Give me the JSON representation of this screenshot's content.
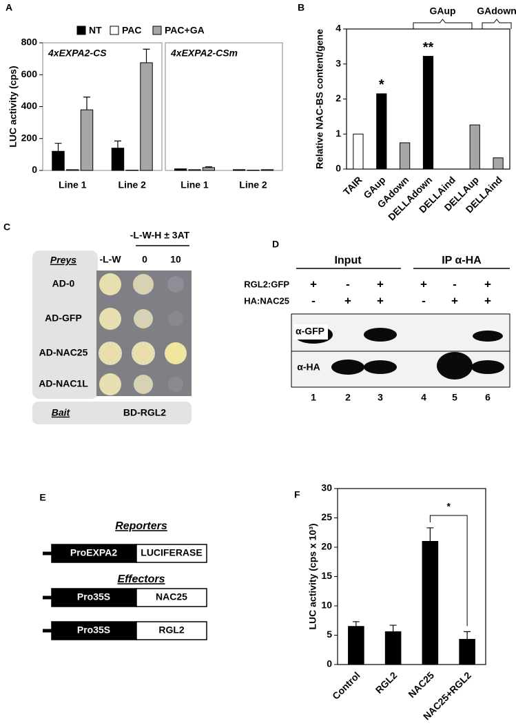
{
  "chart_data": [
    {
      "type": "bar",
      "panel": "A",
      "title": "4xEXPA2-CS",
      "y_label": "LUC activity (cps)",
      "categories": [
        "Line 1",
        "Line 2"
      ],
      "series": [
        {
          "name": "NT",
          "color": "#000000",
          "values": [
            120,
            140
          ],
          "errors": [
            50,
            45
          ]
        },
        {
          "name": "PAC",
          "color": "#ffffff",
          "values": [
            5,
            2
          ],
          "errors": [
            0,
            0
          ]
        },
        {
          "name": "PAC+GA",
          "color": "#a6a6a6",
          "values": [
            380,
            675
          ],
          "errors": [
            80,
            85
          ]
        }
      ],
      "ylim": [
        0,
        800
      ],
      "yticks": [
        0,
        200,
        400,
        600,
        800
      ]
    },
    {
      "type": "bar",
      "title": "4xEXPA2-CSm",
      "categories": [
        "Line 1",
        "Line 2"
      ],
      "series": [
        {
          "color": "#000000",
          "values": [
            10,
            5
          ],
          "errors": [
            0,
            0
          ]
        },
        {
          "color": "#ffffff",
          "values": [
            5,
            2
          ],
          "errors": [
            0,
            0
          ]
        },
        {
          "color": "#a6a6a6",
          "values": [
            18,
            5
          ],
          "errors": [
            5,
            0
          ]
        }
      ],
      "ylim": [
        0,
        800
      ]
    },
    {
      "type": "bar",
      "panel": "B",
      "y_label": "Relative NAC-BS content/gene",
      "categories": [
        "TAIR",
        "GAup",
        "GAdown",
        "DELLAdown",
        "DELLAind",
        "DELLAup",
        "DELLAind"
      ],
      "values": [
        1,
        2.15,
        0.75,
        3.22,
        0,
        1.26,
        0.32
      ],
      "colors": [
        "#ffffff",
        "#000000",
        "#a6a6a6",
        "#000000",
        "#a6a6a6",
        "#a6a6a6",
        "#a6a6a6"
      ],
      "annotations": [
        "*",
        "**"
      ],
      "group_labels": [
        "GAup",
        "GAdown"
      ],
      "ylim": [
        0,
        4
      ],
      "yticks": [
        0,
        1,
        2,
        3,
        4
      ]
    },
    {
      "type": "bar",
      "panel": "F",
      "y_label": "LUC activity (cps x 10³)",
      "categories": [
        "Control",
        "RGL2",
        "NAC25",
        "NAC25+RGL2"
      ],
      "values": [
        6.5,
        5.6,
        21,
        4.3
      ],
      "errors": [
        0.8,
        1.1,
        2.3,
        1.3
      ],
      "color": "#000000",
      "annotations": [
        "*"
      ],
      "ylim": [
        0,
        30
      ],
      "yticks": [
        0,
        5,
        10,
        15,
        20,
        25,
        30
      ]
    }
  ],
  "panel_c": {
    "label": "C",
    "header": "-L-W-H ± 3AT",
    "preys_label": "Preys",
    "columns": [
      "-L-W",
      "0",
      "10"
    ],
    "rows": [
      "AD-0",
      "AD-GFP",
      "AD-NAC25",
      "AD-NAC1L"
    ],
    "bait_label": "Bait",
    "bait": "BD-RGL2"
  },
  "panel_d": {
    "label": "D",
    "groups": [
      "Input",
      "IP α-HA"
    ],
    "rows": [
      {
        "name": "RGL2:GFP",
        "signs": [
          "+",
          "-",
          "+",
          "+",
          "-",
          "+"
        ]
      },
      {
        "name": "HA:NAC25",
        "signs": [
          "-",
          "+",
          "+",
          "-",
          "+",
          "+"
        ]
      }
    ],
    "blots": [
      "α-GFP",
      "α-HA"
    ],
    "lanes": [
      1,
      2,
      3,
      4,
      5,
      6
    ]
  },
  "panel_e": {
    "label": "E",
    "reporters_label": "Reporters",
    "reporter": [
      "ProEXPA2",
      "LUCIFERASE"
    ],
    "effectors_label": "Effectors",
    "effectors": [
      [
        "Pro35S",
        "NAC25"
      ],
      [
        "Pro35S",
        "RGL2"
      ]
    ]
  }
}
